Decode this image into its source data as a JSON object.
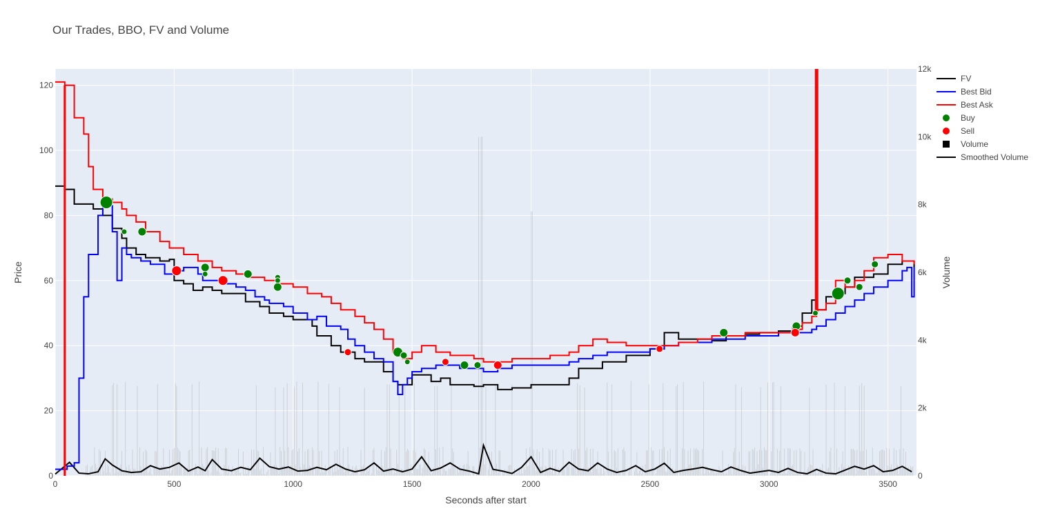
{
  "chart_data": {
    "type": "line",
    "title": "Our Trades, BBO, FV and Volume",
    "xlabel": "Seconds after start",
    "ylabel": "Price",
    "y2label": "Volume",
    "xlim": [
      0,
      3620
    ],
    "ylim": [
      0,
      125
    ],
    "y2lim": [
      0,
      12000
    ],
    "x_ticks": [
      0,
      500,
      1000,
      1500,
      2000,
      2500,
      3000,
      3500
    ],
    "y_ticks": [
      0,
      20,
      40,
      60,
      80,
      100,
      120
    ],
    "y2_ticks": [
      0,
      2000,
      4000,
      6000,
      8000,
      10000,
      12000
    ],
    "y2_tick_labels": [
      "0",
      "2k",
      "4k",
      "6k",
      "8k",
      "10k",
      "12k"
    ],
    "legend": [
      "FV",
      "Best Bid",
      "Best Ask",
      "Buy",
      "Sell",
      "Volume",
      "Smoothed Volume"
    ],
    "legend_position": "right",
    "colors": {
      "fv": "#000000",
      "bid": "#0000ff",
      "ask": "#ff0000",
      "buy": "#008000",
      "sell": "#ff0000",
      "volume": "#b4b4b4",
      "smoothed": "#000000",
      "plot_bg": "#e5ecf6",
      "grid": "#ffffff"
    },
    "series": [
      {
        "name": "FV",
        "x": [
          0,
          40,
          80,
          160,
          200,
          240,
          280,
          300,
          340,
          380,
          440,
          480,
          500,
          540,
          580,
          620,
          660,
          700,
          800,
          860,
          900,
          960,
          1000,
          1080,
          1100,
          1160,
          1200,
          1260,
          1300,
          1380,
          1420,
          1440,
          1500,
          1580,
          1620,
          1660,
          1700,
          1760,
          1800,
          1860,
          1920,
          2000,
          2080,
          2160,
          2200,
          2300,
          2400,
          2500,
          2560,
          2620,
          2700,
          2760,
          2820,
          2900,
          2960,
          3040,
          3100,
          3140,
          3180,
          3200,
          3240,
          3280,
          3320,
          3360,
          3400,
          3440,
          3500,
          3560,
          3610
        ],
        "y": [
          89,
          88,
          83.5,
          82,
          80,
          76,
          73,
          70,
          68,
          67,
          66,
          66.5,
          60,
          59,
          57,
          58,
          57,
          56,
          53.5,
          52,
          50,
          49,
          48,
          46,
          43,
          40,
          38,
          36,
          35,
          32,
          29,
          28,
          31,
          29,
          30,
          28,
          28,
          27.5,
          28,
          26.5,
          27,
          28,
          28,
          30,
          33,
          35,
          37,
          39,
          44,
          42,
          42,
          41.5,
          43,
          43.5,
          44,
          44.5,
          46,
          50,
          54,
          51,
          55,
          56,
          58,
          61,
          61,
          62,
          65,
          66,
          64
        ]
      },
      {
        "name": "Best Bid",
        "x": [
          0,
          50,
          80,
          100,
          120,
          140,
          180,
          200,
          220,
          240,
          260,
          280,
          300,
          320,
          360,
          400,
          460,
          500,
          540,
          600,
          620,
          700,
          760,
          800,
          840,
          880,
          900,
          960,
          1000,
          1060,
          1100,
          1140,
          1200,
          1230,
          1260,
          1300,
          1340,
          1380,
          1420,
          1440,
          1460,
          1480,
          1500,
          1540,
          1600,
          1660,
          1700,
          1760,
          1800,
          1860,
          1920,
          2000,
          2080,
          2160,
          2200,
          2260,
          2320,
          2400,
          2500,
          2560,
          2620,
          2700,
          2760,
          2820,
          2900,
          2960,
          3040,
          3100,
          3140,
          3180,
          3200,
          3240,
          3280,
          3320,
          3360,
          3400,
          3440,
          3500,
          3560,
          3580,
          3600,
          3610
        ],
        "y": [
          2,
          3,
          4,
          30,
          55,
          68,
          80,
          85,
          83,
          75,
          60,
          70,
          68,
          67,
          66,
          65,
          62,
          63,
          64,
          62,
          60,
          59,
          58,
          57,
          55,
          54,
          53,
          52,
          50,
          48,
          49,
          46,
          45,
          42,
          40,
          38,
          36,
          35,
          29,
          25,
          28,
          30,
          32,
          33,
          34,
          34,
          33,
          33,
          32,
          33,
          34,
          34,
          34,
          35,
          36,
          37,
          38,
          38,
          39,
          40,
          41,
          41,
          42,
          42,
          43,
          43,
          44,
          44,
          44,
          45,
          46,
          48,
          50,
          52,
          54,
          56,
          58,
          60,
          63,
          64,
          55,
          64
        ]
      },
      {
        "name": "Best Ask",
        "x": [
          0,
          40,
          60,
          80,
          100,
          120,
          140,
          160,
          200,
          240,
          280,
          300,
          340,
          380,
          440,
          480,
          540,
          600,
          660,
          700,
          760,
          820,
          880,
          940,
          1000,
          1060,
          1120,
          1160,
          1200,
          1260,
          1300,
          1340,
          1380,
          1420,
          1460,
          1500,
          1540,
          1600,
          1660,
          1700,
          1760,
          1800,
          1860,
          1920,
          2000,
          2080,
          2160,
          2200,
          2260,
          2320,
          2400,
          2500,
          2560,
          2620,
          2700,
          2760,
          2820,
          2900,
          2960,
          3040,
          3100,
          3140,
          3180,
          3200,
          3240,
          3280,
          3320,
          3360,
          3400,
          3440,
          3500,
          3560,
          3610
        ],
        "y": [
          121,
          120,
          120,
          110,
          110,
          105,
          95,
          88,
          85,
          84,
          82,
          80,
          78,
          75,
          72,
          70,
          68,
          66,
          64,
          63,
          62,
          61,
          60,
          59,
          58,
          56,
          55,
          53,
          51,
          49,
          47,
          45,
          42,
          38,
          36,
          38,
          40,
          38,
          37,
          37,
          36,
          35,
          35,
          36,
          36,
          37,
          38,
          40,
          42,
          41,
          40,
          40,
          40,
          41,
          42,
          43,
          43,
          44,
          44,
          44,
          45,
          47,
          49,
          51,
          53,
          60,
          58,
          60,
          63,
          67,
          68,
          66,
          65
        ]
      },
      {
        "name": "Smoothed Volume",
        "x": [
          0,
          60,
          100,
          140,
          180,
          210,
          240,
          280,
          320,
          360,
          400,
          440,
          480,
          520,
          560,
          600,
          630,
          660,
          700,
          740,
          780,
          820,
          860,
          900,
          940,
          980,
          1020,
          1060,
          1100,
          1140,
          1180,
          1220,
          1260,
          1300,
          1340,
          1380,
          1420,
          1460,
          1500,
          1540,
          1580,
          1620,
          1660,
          1700,
          1740,
          1780,
          1800,
          1840,
          1880,
          1920,
          1960,
          2000,
          2040,
          2080,
          2120,
          2160,
          2200,
          2240,
          2280,
          2320,
          2360,
          2400,
          2440,
          2480,
          2520,
          2560,
          2600,
          2640,
          2680,
          2720,
          2760,
          2800,
          2840,
          2880,
          2920,
          2960,
          3000,
          3040,
          3080,
          3120,
          3160,
          3200,
          3240,
          3280,
          3320,
          3360,
          3400,
          3440,
          3480,
          3520,
          3560,
          3600
        ],
        "y": [
          50,
          400,
          80,
          60,
          120,
          500,
          320,
          150,
          100,
          120,
          300,
          200,
          250,
          380,
          140,
          260,
          150,
          480,
          200,
          150,
          250,
          180,
          520,
          270,
          200,
          260,
          140,
          160,
          250,
          180,
          340,
          200,
          120,
          180,
          380,
          140,
          200,
          120,
          200,
          560,
          150,
          230,
          380,
          200,
          140,
          60,
          900,
          190,
          140,
          70,
          250,
          560,
          100,
          220,
          130,
          400,
          200,
          150,
          380,
          200,
          100,
          160,
          300,
          120,
          200,
          370,
          100,
          160,
          200,
          250,
          180,
          120,
          260,
          160,
          80,
          120,
          160,
          100,
          220,
          100,
          60,
          190,
          80,
          60,
          170,
          280,
          200,
          300,
          120,
          160,
          280,
          120
        ]
      },
      {
        "name": "Buy",
        "points": [
          {
            "x": 215,
            "y": 84,
            "size": 9
          },
          {
            "x": 290,
            "y": 75,
            "size": 4
          },
          {
            "x": 365,
            "y": 75,
            "size": 6
          },
          {
            "x": 630,
            "y": 64,
            "size": 6
          },
          {
            "x": 630,
            "y": 62,
            "size": 4
          },
          {
            "x": 810,
            "y": 62,
            "size": 6
          },
          {
            "x": 935,
            "y": 61,
            "size": 4
          },
          {
            "x": 935,
            "y": 60,
            "size": 4
          },
          {
            "x": 935,
            "y": 58,
            "size": 6
          },
          {
            "x": 1440,
            "y": 38,
            "size": 7
          },
          {
            "x": 1465,
            "y": 37,
            "size": 5
          },
          {
            "x": 1480,
            "y": 35,
            "size": 4
          },
          {
            "x": 1720,
            "y": 34,
            "size": 6
          },
          {
            "x": 1775,
            "y": 34,
            "size": 5
          },
          {
            "x": 2810,
            "y": 44,
            "size": 6
          },
          {
            "x": 3115,
            "y": 46,
            "size": 6
          },
          {
            "x": 3195,
            "y": 50,
            "size": 4
          },
          {
            "x": 3290,
            "y": 56,
            "size": 9
          },
          {
            "x": 3330,
            "y": 60,
            "size": 5
          },
          {
            "x": 3380,
            "y": 58,
            "size": 5
          },
          {
            "x": 3445,
            "y": 65,
            "size": 5
          }
        ]
      },
      {
        "name": "Sell",
        "points": [
          {
            "x": 510,
            "y": 63,
            "size": 7
          },
          {
            "x": 705,
            "y": 60,
            "size": 7
          },
          {
            "x": 1230,
            "y": 38,
            "size": 5
          },
          {
            "x": 1640,
            "y": 35,
            "size": 5
          },
          {
            "x": 1860,
            "y": 34,
            "size": 6
          },
          {
            "x": 2540,
            "y": 39,
            "size": 5
          },
          {
            "x": 3110,
            "y": 44,
            "size": 6
          }
        ]
      }
    ]
  }
}
